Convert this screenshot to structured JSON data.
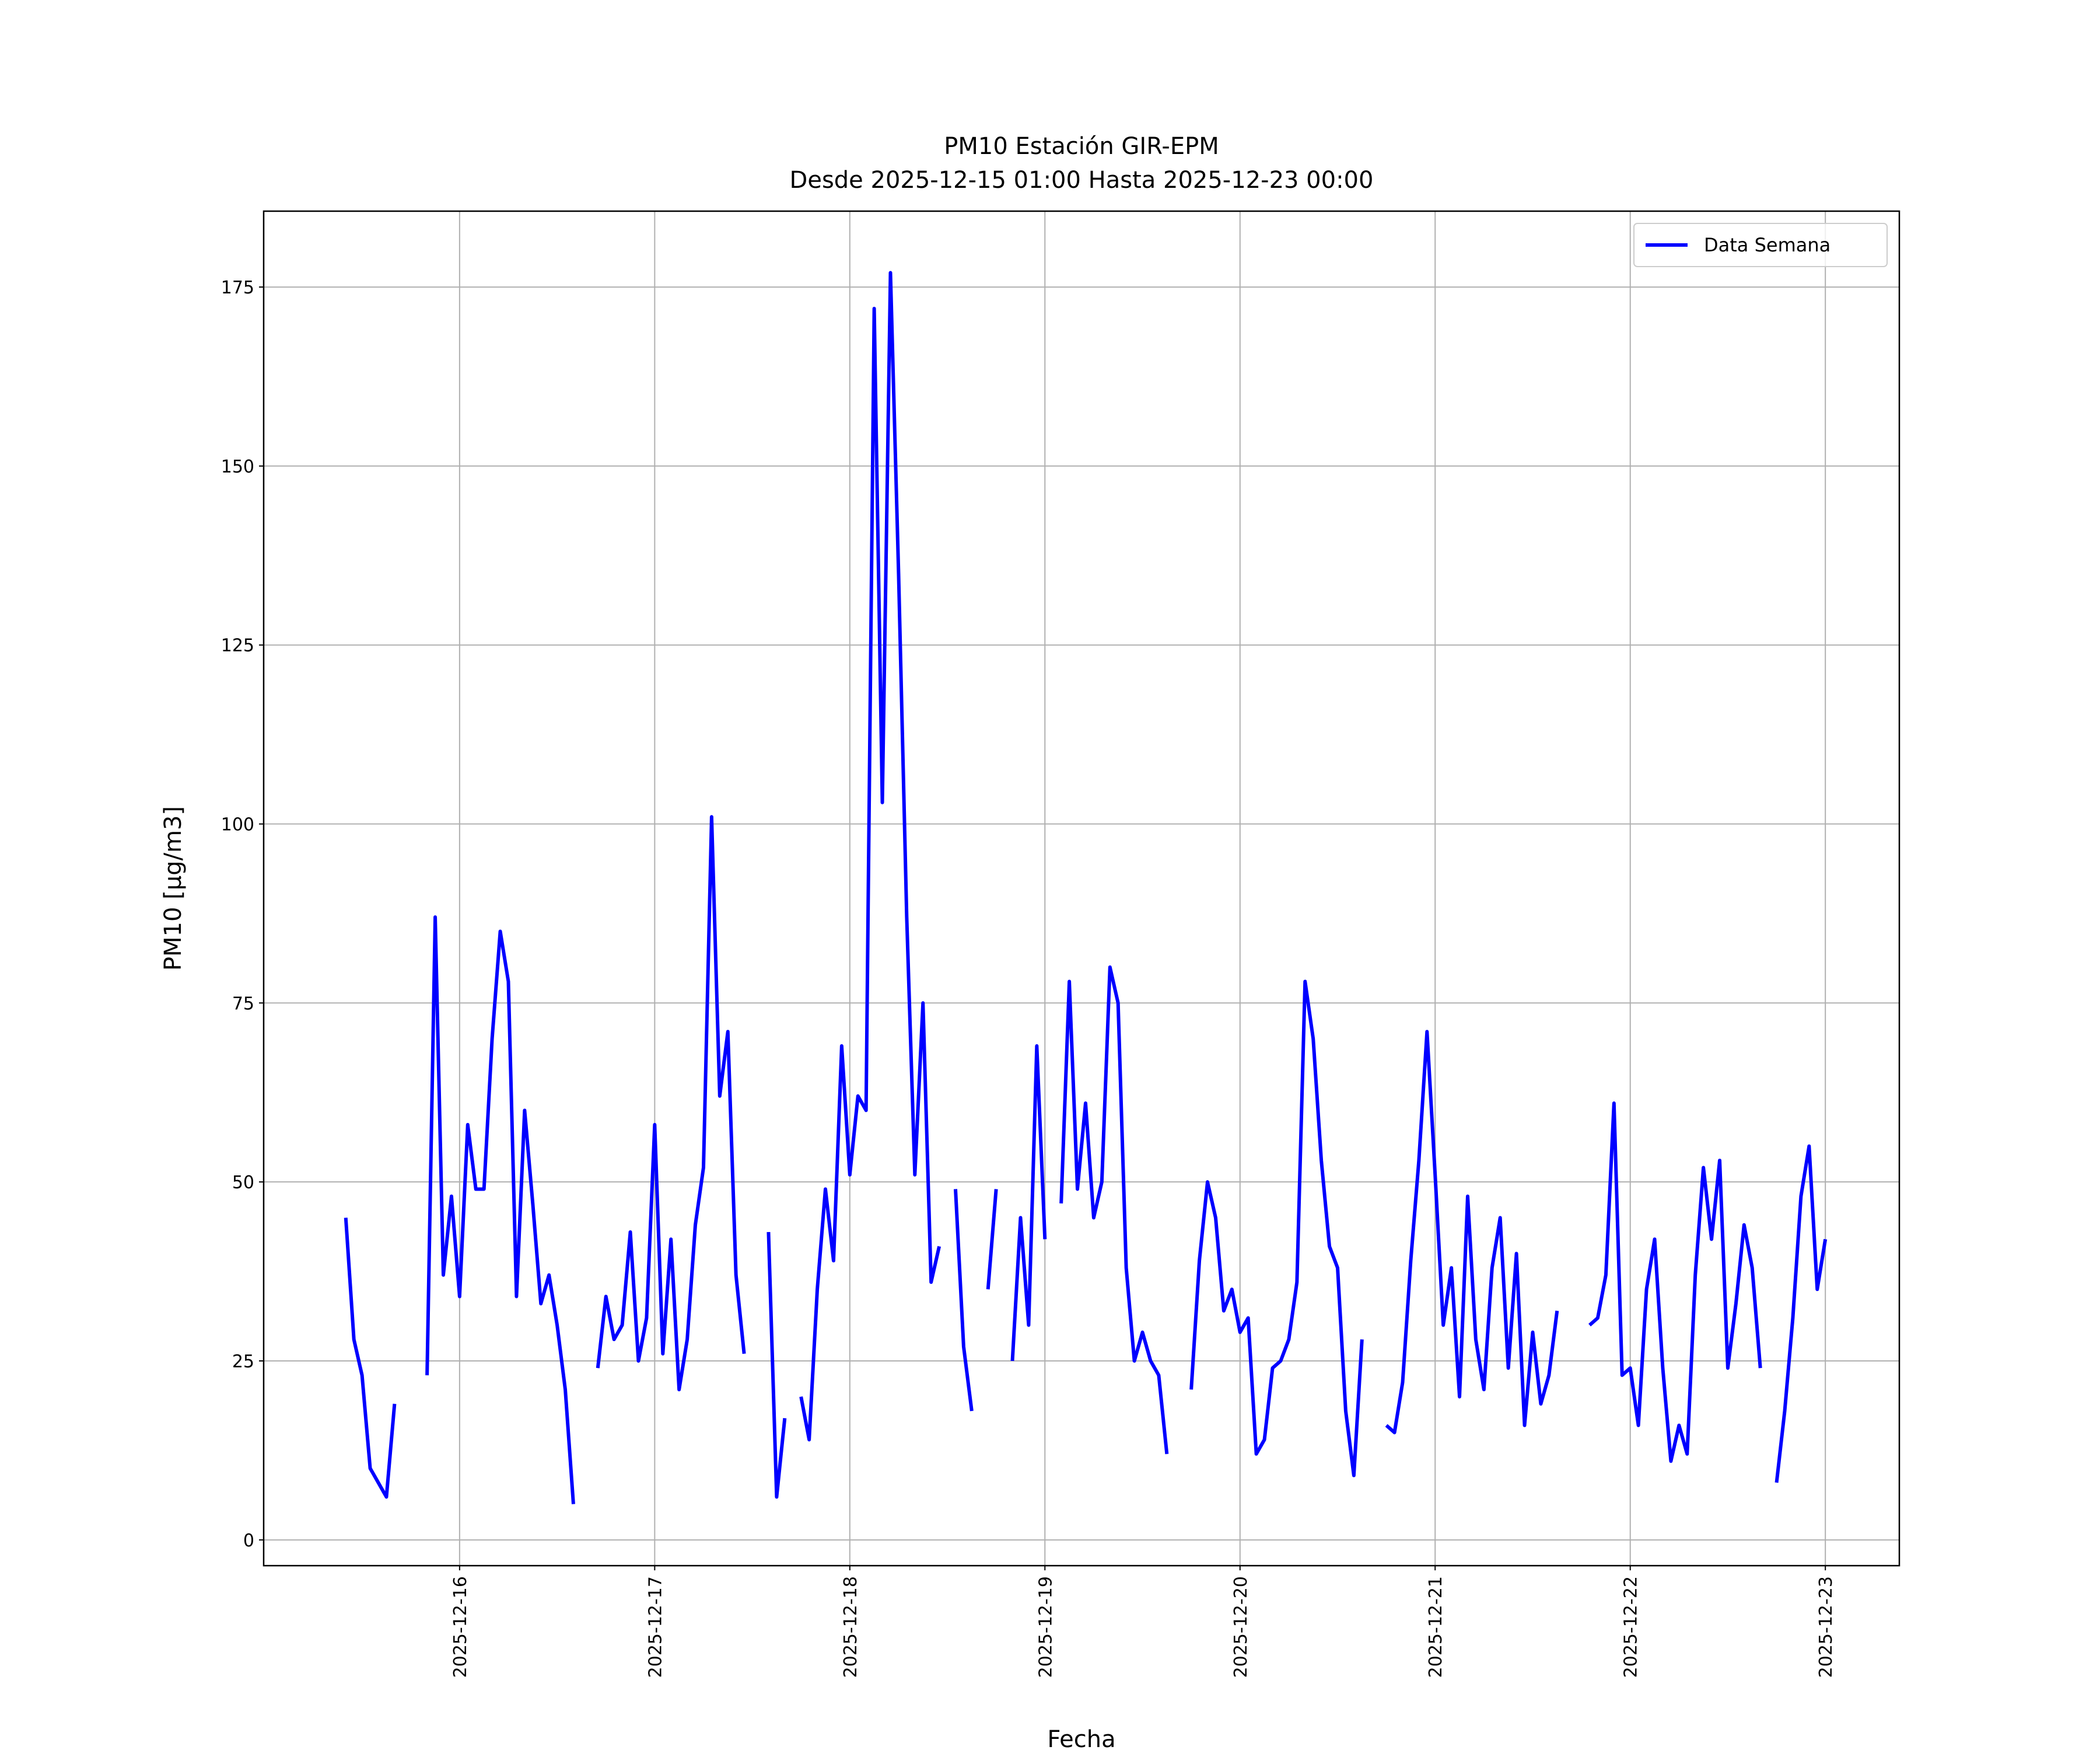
{
  "chart_data": {
    "type": "line",
    "title": "PM10 Estación GIR-EPM",
    "subtitle": "Desde 2025-12-15 01:00 Hasta 2025-12-23 00:00",
    "x_label": "Fecha",
    "y_label": "PM10 [μg/m3]",
    "legend": "upper right",
    "grid": true,
    "x": [
      "2025-12-15 10:00",
      "2025-12-15 11:00",
      "2025-12-15 12:00",
      "2025-12-15 13:00",
      "2025-12-15 14:00",
      "2025-12-15 15:00",
      "2025-12-15 16:00",
      "2025-12-15 17:00",
      "2025-12-15 18:00",
      "2025-12-15 19:00",
      "2025-12-15 20:00",
      "2025-12-15 21:00",
      "2025-12-15 22:00",
      "2025-12-15 23:00",
      "2025-12-16 00:00",
      "2025-12-16 01:00",
      "2025-12-16 02:00",
      "2025-12-16 03:00",
      "2025-12-16 04:00",
      "2025-12-16 05:00",
      "2025-12-16 06:00",
      "2025-12-16 07:00",
      "2025-12-16 08:00",
      "2025-12-16 09:00",
      "2025-12-16 10:00",
      "2025-12-16 11:00",
      "2025-12-16 12:00",
      "2025-12-16 13:00",
      "2025-12-16 14:00",
      "2025-12-16 15:00",
      "2025-12-16 16:00",
      "2025-12-16 17:00",
      "2025-12-16 18:00",
      "2025-12-16 19:00",
      "2025-12-16 20:00",
      "2025-12-16 21:00",
      "2025-12-16 22:00",
      "2025-12-16 23:00",
      "2025-12-17 00:00",
      "2025-12-17 01:00",
      "2025-12-17 02:00",
      "2025-12-17 03:00",
      "2025-12-17 04:00",
      "2025-12-17 05:00",
      "2025-12-17 06:00",
      "2025-12-17 07:00",
      "2025-12-17 08:00",
      "2025-12-17 09:00",
      "2025-12-17 10:00",
      "2025-12-17 11:00",
      "2025-12-17 12:00",
      "2025-12-17 13:00",
      "2025-12-17 14:00",
      "2025-12-17 15:00",
      "2025-12-17 16:00",
      "2025-12-17 17:00",
      "2025-12-17 18:00",
      "2025-12-17 19:00",
      "2025-12-17 20:00",
      "2025-12-17 21:00",
      "2025-12-17 22:00",
      "2025-12-17 23:00",
      "2025-12-18 00:00",
      "2025-12-18 01:00",
      "2025-12-18 02:00",
      "2025-12-18 03:00",
      "2025-12-18 04:00",
      "2025-12-18 05:00",
      "2025-12-18 06:00",
      "2025-12-18 07:00",
      "2025-12-18 08:00",
      "2025-12-18 09:00",
      "2025-12-18 10:00",
      "2025-12-18 11:00",
      "2025-12-18 12:00",
      "2025-12-18 13:00",
      "2025-12-18 14:00",
      "2025-12-18 15:00",
      "2025-12-18 16:00",
      "2025-12-18 17:00",
      "2025-12-18 18:00",
      "2025-12-18 19:00",
      "2025-12-18 20:00",
      "2025-12-18 21:00",
      "2025-12-18 22:00",
      "2025-12-18 23:00",
      "2025-12-19 00:00",
      "2025-12-19 01:00",
      "2025-12-19 02:00",
      "2025-12-19 03:00",
      "2025-12-19 04:00",
      "2025-12-19 05:00",
      "2025-12-19 06:00",
      "2025-12-19 07:00",
      "2025-12-19 08:00",
      "2025-12-19 09:00",
      "2025-12-19 10:00",
      "2025-12-19 11:00",
      "2025-12-19 12:00",
      "2025-12-19 13:00",
      "2025-12-19 14:00",
      "2025-12-19 15:00",
      "2025-12-19 16:00",
      "2025-12-19 17:00",
      "2025-12-19 18:00",
      "2025-12-19 19:00",
      "2025-12-19 20:00",
      "2025-12-19 21:00",
      "2025-12-19 22:00",
      "2025-12-19 23:00",
      "2025-12-20 00:00",
      "2025-12-20 01:00",
      "2025-12-20 02:00",
      "2025-12-20 03:00",
      "2025-12-20 04:00",
      "2025-12-20 05:00",
      "2025-12-20 06:00",
      "2025-12-20 07:00",
      "2025-12-20 08:00",
      "2025-12-20 09:00",
      "2025-12-20 10:00",
      "2025-12-20 11:00",
      "2025-12-20 12:00",
      "2025-12-20 13:00",
      "2025-12-20 14:00",
      "2025-12-20 15:00",
      "2025-12-20 16:00",
      "2025-12-20 17:00",
      "2025-12-20 18:00",
      "2025-12-20 19:00",
      "2025-12-20 20:00",
      "2025-12-20 21:00",
      "2025-12-20 22:00",
      "2025-12-20 23:00",
      "2025-12-21 00:00",
      "2025-12-21 01:00",
      "2025-12-21 02:00",
      "2025-12-21 03:00",
      "2025-12-21 04:00",
      "2025-12-21 05:00",
      "2025-12-21 06:00",
      "2025-12-21 07:00",
      "2025-12-21 08:00",
      "2025-12-21 09:00",
      "2025-12-21 10:00",
      "2025-12-21 11:00",
      "2025-12-21 12:00",
      "2025-12-21 13:00",
      "2025-12-21 14:00",
      "2025-12-21 15:00",
      "2025-12-21 16:00",
      "2025-12-21 17:00",
      "2025-12-21 18:00",
      "2025-12-21 19:00",
      "2025-12-21 20:00",
      "2025-12-21 21:00",
      "2025-12-21 22:00",
      "2025-12-21 23:00",
      "2025-12-22 00:00",
      "2025-12-22 01:00",
      "2025-12-22 02:00",
      "2025-12-22 03:00",
      "2025-12-22 04:00",
      "2025-12-22 05:00",
      "2025-12-22 06:00",
      "2025-12-22 07:00",
      "2025-12-22 08:00",
      "2025-12-22 09:00",
      "2025-12-22 10:00",
      "2025-12-22 11:00",
      "2025-12-22 12:00",
      "2025-12-22 13:00",
      "2025-12-22 14:00",
      "2025-12-22 15:00",
      "2025-12-22 16:00",
      "2025-12-22 17:00",
      "2025-12-22 18:00",
      "2025-12-22 19:00",
      "2025-12-22 20:00",
      "2025-12-22 21:00",
      "2025-12-22 22:00",
      "2025-12-22 23:00",
      "2025-12-23 00:00"
    ],
    "series": [
      {
        "name": "Data Semana",
        "color": "#0000ff",
        "values": [
          45,
          28,
          23,
          10,
          8,
          6,
          19,
          null,
          null,
          null,
          23,
          87,
          37,
          48,
          34,
          58,
          49,
          49,
          70,
          85,
          78,
          34,
          60,
          47,
          33,
          37,
          30,
          21,
          5,
          null,
          null,
          24,
          34,
          28,
          30,
          43,
          25,
          31,
          58,
          26,
          42,
          21,
          28,
          44,
          52,
          101,
          62,
          71,
          37,
          26,
          null,
          null,
          43,
          6,
          17,
          null,
          20,
          14,
          35,
          49,
          39,
          69,
          51,
          62,
          60,
          172,
          103,
          177,
          135,
          87,
          51,
          75,
          36,
          41,
          null,
          49,
          27,
          18,
          null,
          35,
          49,
          null,
          25,
          45,
          30,
          69,
          42,
          null,
          47,
          78,
          49,
          61,
          45,
          50,
          80,
          75,
          38,
          25,
          29,
          25,
          23,
          12,
          null,
          null,
          21,
          39,
          50,
          45,
          32,
          35,
          29,
          31,
          12,
          14,
          24,
          25,
          28,
          36,
          78,
          70,
          53,
          41,
          38,
          18,
          9,
          28,
          null,
          null,
          16,
          15,
          22,
          39,
          53,
          71,
          51,
          30,
          38,
          20,
          48,
          28,
          21,
          38,
          45,
          24,
          40,
          16,
          29,
          19,
          23,
          32,
          null,
          null,
          null,
          30,
          31,
          37,
          61,
          23,
          24,
          16,
          35,
          42,
          24,
          11,
          16,
          12,
          37,
          52,
          42,
          53,
          24,
          33,
          44,
          38,
          24,
          null,
          8,
          18,
          31,
          48,
          55,
          35,
          42
        ]
      }
    ],
    "xlim": [
      "2025-12-14 23:54",
      "2025-12-23 09:06"
    ],
    "xticks": [
      "2025-12-16",
      "2025-12-17",
      "2025-12-18",
      "2025-12-19",
      "2025-12-20",
      "2025-12-21",
      "2025-12-22",
      "2025-12-23"
    ],
    "ylim": [
      -3.6,
      185.6
    ],
    "yticks": [
      0,
      25,
      50,
      75,
      100,
      125,
      150,
      175
    ]
  }
}
